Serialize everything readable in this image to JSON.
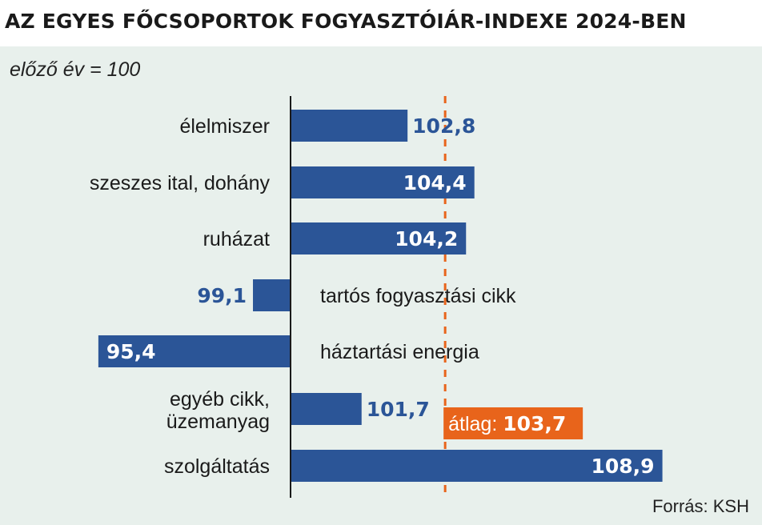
{
  "title": "AZ EGYES FŐCSOPORTOK FOGYASZTÓIÁR-INDEXE 2024-BEN",
  "subtitle": "előző év = 100",
  "source": "Forrás: KSH",
  "colors": {
    "bar": "#2b5597",
    "average": "#e8641b",
    "background": "#e8f0ec",
    "text": "#1a1a1a"
  },
  "chart_data": {
    "type": "bar",
    "orientation": "horizontal",
    "baseline": 100,
    "categories": [
      "élelmiszer",
      "szeszes ital, dohány",
      "ruházat",
      "tartós fogyasztási cikk",
      "háztartási energia",
      "egyéb cikk, üzemanyag",
      "szolgáltatás"
    ],
    "values": [
      102.8,
      104.4,
      104.2,
      99.1,
      95.4,
      101.7,
      108.9
    ],
    "value_labels": [
      "102,8",
      "104,4",
      "104,2",
      "99,1",
      "95,4",
      "101,7",
      "108,9"
    ],
    "average": {
      "value": 103.7,
      "label_prefix": "átlag:",
      "label_value": "103,7"
    },
    "xlim": [
      94.8,
      109.4
    ],
    "grid": false,
    "legend": "none"
  }
}
